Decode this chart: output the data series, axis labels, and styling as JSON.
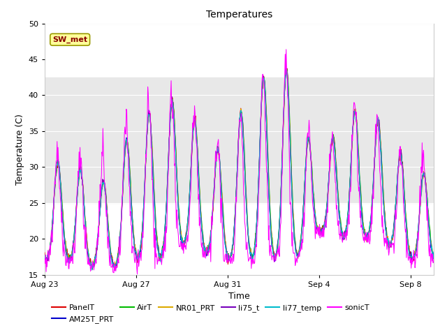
{
  "title": "Temperatures",
  "xlabel": "Time",
  "ylabel": "Temperature (C)",
  "ylim": [
    15,
    50
  ],
  "x_tick_labels": [
    "Aug 23",
    "Aug 27",
    "Aug 31",
    "Sep 4",
    "Sep 8"
  ],
  "x_tick_positions": [
    0,
    4,
    8,
    12,
    16
  ],
  "shading_low": 25.0,
  "shading_high": 42.5,
  "shading_color": "#e8e8e8",
  "series_colors": {
    "PanelT": "#dd0000",
    "AM25T_PRT": "#0000cc",
    "AirT": "#00bb00",
    "NR01_PRT": "#ddaa00",
    "li75_t": "#7700bb",
    "li77_temp": "#00bbcc",
    "sonicT": "#ff00ff"
  },
  "legend_label": "SW_met",
  "legend_box_facecolor": "#ffff99",
  "legend_box_edgecolor": "#999900",
  "legend_text_color": "#880000",
  "bg_color": "#ffffff",
  "grid_color": "#d0d0d0"
}
